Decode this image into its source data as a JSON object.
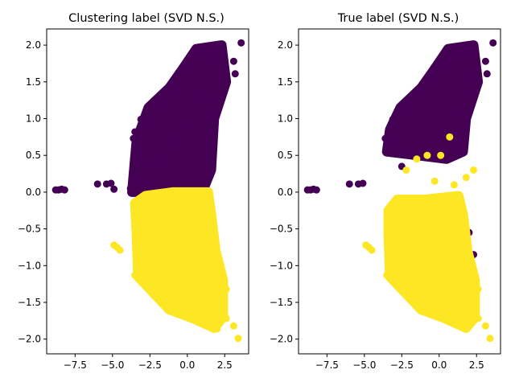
{
  "chart_data": [
    {
      "type": "scatter",
      "title": "Clustering label (SVD N.S.)",
      "xlabel": "",
      "ylabel": "",
      "xlim": [
        -9.4,
        4.1
      ],
      "ylim": [
        -2.2,
        2.22
      ],
      "xticks": [
        -7.5,
        -5.0,
        -2.5,
        0.0,
        2.5
      ],
      "xtick_labels": [
        "−7.5",
        "−5.0",
        "−2.5",
        "0.0",
        "2.5"
      ],
      "yticks": [
        -2.0,
        -1.5,
        -1.0,
        -0.5,
        0.0,
        0.5,
        1.0,
        1.5,
        2.0
      ],
      "ytick_labels": [
        "−2.0",
        "−1.5",
        "−1.0",
        "−0.5",
        "0.0",
        "0.5",
        "1.0",
        "1.5",
        "2.0"
      ],
      "grid": false,
      "legend": "none",
      "colors": {
        "label_0": "#440154",
        "label_1": "#fde725"
      },
      "series": [
        {
          "color": "#440154",
          "points": [
            [
              -8.6,
              0.03
            ],
            [
              -8.4,
              0.04
            ],
            [
              -8.2,
              0.03
            ],
            [
              -8.8,
              0.03
            ],
            [
              -6.0,
              0.11
            ],
            [
              -5.4,
              0.11
            ],
            [
              -5.1,
              0.12
            ],
            [
              -4.9,
              0.04
            ],
            [
              -3.8,
              0.05
            ],
            [
              -3.6,
              0.73
            ],
            [
              -3.5,
              0.82
            ],
            [
              -3.1,
              0.99
            ],
            [
              -2.8,
              1.08
            ],
            [
              -2.3,
              1.21
            ],
            [
              -1.6,
              1.28
            ],
            [
              -1.1,
              1.39
            ],
            [
              -0.6,
              1.62
            ],
            [
              0.2,
              1.72
            ],
            [
              0.5,
              1.93
            ],
            [
              0.9,
              1.9
            ],
            [
              1.8,
              1.98
            ],
            [
              2.2,
              1.73
            ],
            [
              3.2,
              1.61
            ],
            [
              3.1,
              1.78
            ],
            [
              3.6,
              2.03
            ],
            [
              2.6,
              1.46
            ],
            [
              1.6,
              1.05
            ],
            [
              1.5,
              0.54
            ],
            [
              1.5,
              0.22
            ],
            [
              -3.0,
              0.08
            ],
            [
              -2.9,
              0.05
            ],
            [
              -2.5,
              0.02
            ],
            [
              0.0,
              0.9
            ],
            [
              -1.0,
              0.7
            ],
            [
              1.0,
              1.3
            ],
            [
              -2.0,
              0.4
            ]
          ],
          "cluster_region": [
            [
              -3.7,
              0.0
            ],
            [
              -3.4,
              0.7
            ],
            [
              -2.6,
              1.15
            ],
            [
              -1.2,
              1.42
            ],
            [
              -0.4,
              1.65
            ],
            [
              0.6,
              1.95
            ],
            [
              2.3,
              2.0
            ],
            [
              2.6,
              1.5
            ],
            [
              1.8,
              1.0
            ],
            [
              1.6,
              0.3
            ],
            [
              1.0,
              0.0
            ],
            [
              -1.5,
              0.0
            ],
            [
              -3.2,
              0.0
            ]
          ]
        },
        {
          "color": "#fde725",
          "points": [
            [
              -4.9,
              -0.72
            ],
            [
              -4.7,
              -0.75
            ],
            [
              -4.5,
              -0.79
            ],
            [
              -3.5,
              -0.23
            ],
            [
              -3.2,
              -0.41
            ],
            [
              -3.3,
              -0.63
            ],
            [
              -3.5,
              -1.13
            ],
            [
              -2.8,
              -1.23
            ],
            [
              -2.1,
              -1.42
            ],
            [
              -1.1,
              -1.62
            ],
            [
              -0.2,
              -1.67
            ],
            [
              0.6,
              -1.7
            ],
            [
              1.5,
              -1.81
            ],
            [
              2.0,
              -1.86
            ],
            [
              2.6,
              -1.72
            ],
            [
              3.1,
              -1.82
            ],
            [
              3.4,
              -1.99
            ],
            [
              2.6,
              -1.32
            ],
            [
              1.8,
              -0.87
            ],
            [
              1.5,
              -0.4
            ],
            [
              1.4,
              -0.1
            ],
            [
              0.8,
              -0.03
            ],
            [
              -0.5,
              -0.04
            ],
            [
              -2.0,
              -0.05
            ],
            [
              -2.7,
              -0.15
            ],
            [
              0.0,
              -0.9
            ],
            [
              -1.5,
              -0.7
            ],
            [
              1.0,
              -1.3
            ]
          ],
          "cluster_region": [
            [
              -3.5,
              -0.15
            ],
            [
              -3.4,
              -0.55
            ],
            [
              -3.3,
              -1.15
            ],
            [
              -2.6,
              -1.3
            ],
            [
              -1.2,
              -1.6
            ],
            [
              0.4,
              -1.72
            ],
            [
              1.8,
              -1.85
            ],
            [
              2.4,
              -1.7
            ],
            [
              2.4,
              -1.2
            ],
            [
              1.9,
              -0.8
            ],
            [
              1.6,
              -0.3
            ],
            [
              1.4,
              0.0
            ],
            [
              -1.0,
              0.0
            ],
            [
              -2.8,
              -0.05
            ]
          ]
        }
      ]
    },
    {
      "type": "scatter",
      "title": "True label (SVD N.S.)",
      "xlabel": "",
      "ylabel": "",
      "xlim": [
        -9.4,
        4.1
      ],
      "ylim": [
        -2.2,
        2.22
      ],
      "xticks": [
        -7.5,
        -5.0,
        -2.5,
        0.0,
        2.5
      ],
      "xtick_labels": [
        "−7.5",
        "−5.0",
        "−2.5",
        "0.0",
        "2.5"
      ],
      "yticks": [
        -2.0,
        -1.5,
        -1.0,
        -0.5,
        0.0,
        0.5,
        1.0,
        1.5,
        2.0
      ],
      "ytick_labels": [
        "−2.0",
        "−1.5",
        "−1.0",
        "−0.5",
        "0.0",
        "0.5",
        "1.0",
        "1.5",
        "2.0"
      ],
      "grid": false,
      "legend": "none",
      "colors": {
        "label_0": "#440154",
        "label_1": "#fde725"
      },
      "series": [
        {
          "color": "#440154",
          "points": [
            [
              -8.6,
              0.03
            ],
            [
              -8.4,
              0.04
            ],
            [
              -8.2,
              0.03
            ],
            [
              -8.8,
              0.03
            ],
            [
              -6.0,
              0.11
            ],
            [
              -5.4,
              0.11
            ],
            [
              -5.1,
              0.12
            ],
            [
              -3.6,
              0.73
            ],
            [
              -3.1,
              0.99
            ],
            [
              -2.8,
              1.08
            ],
            [
              -2.3,
              1.21
            ],
            [
              -1.1,
              1.39
            ],
            [
              0.2,
              1.72
            ],
            [
              0.5,
              1.93
            ],
            [
              1.8,
              1.98
            ],
            [
              3.2,
              1.61
            ],
            [
              3.6,
              2.03
            ],
            [
              3.1,
              1.78
            ],
            [
              -2.5,
              0.35
            ],
            [
              -2.0,
              -0.3
            ],
            [
              -1.0,
              -0.45
            ],
            [
              -0.5,
              -0.3
            ],
            [
              0.3,
              -0.55
            ],
            [
              1.2,
              -0.1
            ],
            [
              1.5,
              -0.6
            ],
            [
              2.0,
              -0.55
            ],
            [
              2.3,
              -0.85
            ],
            [
              -3.4,
              -0.3
            ]
          ],
          "cluster_region": [
            [
              -3.5,
              0.55
            ],
            [
              -3.3,
              0.85
            ],
            [
              -2.6,
              1.15
            ],
            [
              -1.2,
              1.42
            ],
            [
              -0.4,
              1.65
            ],
            [
              0.6,
              1.95
            ],
            [
              2.3,
              2.0
            ],
            [
              2.6,
              1.5
            ],
            [
              1.8,
              1.0
            ],
            [
              1.6,
              0.55
            ],
            [
              0.5,
              0.45
            ],
            [
              -1.5,
              0.5
            ]
          ]
        },
        {
          "color": "#fde725",
          "points": [
            [
              -4.9,
              -0.72
            ],
            [
              -4.7,
              -0.75
            ],
            [
              -4.5,
              -0.79
            ],
            [
              -3.3,
              -0.63
            ],
            [
              -3.5,
              -1.13
            ],
            [
              -2.8,
              -1.23
            ],
            [
              -2.1,
              -1.42
            ],
            [
              -1.1,
              -1.62
            ],
            [
              0.6,
              -1.7
            ],
            [
              1.5,
              -1.81
            ],
            [
              2.6,
              -1.72
            ],
            [
              3.1,
              -1.82
            ],
            [
              3.4,
              -1.99
            ],
            [
              2.6,
              -1.32
            ],
            [
              -1.5,
              0.45
            ],
            [
              -0.8,
              0.5
            ],
            [
              0.1,
              0.5
            ],
            [
              0.7,
              0.75
            ],
            [
              -2.2,
              0.3
            ],
            [
              1.0,
              0.1
            ],
            [
              1.8,
              0.2
            ],
            [
              -0.3,
              0.15
            ],
            [
              -1.8,
              -0.1
            ],
            [
              2.3,
              0.3
            ]
          ],
          "cluster_region": [
            [
              -3.4,
              -0.25
            ],
            [
              -3.4,
              -0.55
            ],
            [
              -3.3,
              -1.15
            ],
            [
              -2.6,
              -1.3
            ],
            [
              -1.2,
              -1.6
            ],
            [
              0.4,
              -1.72
            ],
            [
              1.8,
              -1.85
            ],
            [
              2.4,
              -1.7
            ],
            [
              2.4,
              -1.2
            ],
            [
              1.9,
              -0.8
            ],
            [
              1.6,
              -0.3
            ],
            [
              1.3,
              -0.05
            ],
            [
              -1.0,
              -0.1
            ],
            [
              -2.8,
              -0.1
            ]
          ]
        }
      ]
    }
  ]
}
